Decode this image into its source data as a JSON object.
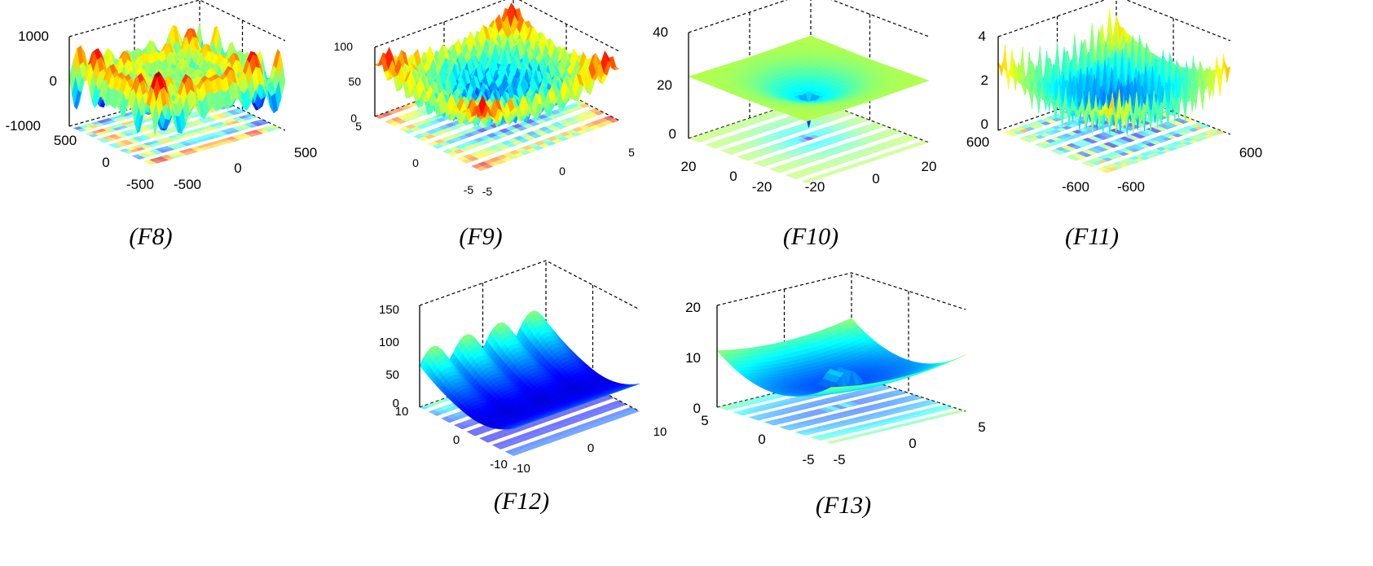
{
  "chart_data": [
    {
      "type": "surface",
      "caption": "(F8)",
      "colormap": "jet",
      "z_ticks": [
        "1000",
        "0",
        "-1000"
      ],
      "zlim": [
        -1000,
        1000
      ],
      "x_ticks": [
        "500",
        "0",
        "-500"
      ],
      "y_ticks": [
        "-500",
        "0",
        "500"
      ],
      "xlim": [
        -500,
        500
      ],
      "ylim": [
        -500,
        500
      ],
      "grid": true,
      "contour_on_base": true
    },
    {
      "type": "surface",
      "caption": "(F9)",
      "colormap": "jet",
      "z_ticks": [
        "100",
        "50",
        "0"
      ],
      "zlim": [
        0,
        100
      ],
      "x_ticks": [
        "5",
        "0",
        "-5"
      ],
      "y_ticks": [
        "-5",
        "0",
        "5"
      ],
      "xlim": [
        -5,
        5
      ],
      "ylim": [
        -5,
        5
      ],
      "grid": true,
      "contour_on_base": true
    },
    {
      "type": "surface",
      "caption": "(F10)",
      "colormap": "jet",
      "z_ticks": [
        "40",
        "20",
        "0"
      ],
      "zlim": [
        0,
        40
      ],
      "x_ticks": [
        "20",
        "0",
        "-20"
      ],
      "y_ticks": [
        "-20",
        "0",
        "20"
      ],
      "xlim": [
        -20,
        20
      ],
      "ylim": [
        -20,
        20
      ],
      "grid": true,
      "contour_on_base": true
    },
    {
      "type": "surface",
      "caption": "(F11)",
      "colormap": "jet",
      "z_ticks": [
        "4",
        "2",
        "0"
      ],
      "zlim": [
        0,
        4
      ],
      "x_ticks": [
        "600",
        "-600"
      ],
      "y_ticks": [
        "-600",
        "600"
      ],
      "xlim": [
        -600,
        600
      ],
      "ylim": [
        -600,
        600
      ],
      "grid": true,
      "contour_on_base": true
    },
    {
      "type": "surface",
      "caption": "(F12)",
      "colormap": "jet",
      "z_ticks": [
        "150",
        "100",
        "50",
        "0"
      ],
      "zlim": [
        0,
        150
      ],
      "x_ticks": [
        "10",
        "0",
        "-10"
      ],
      "y_ticks": [
        "-10",
        "0",
        "10"
      ],
      "xlim": [
        -10,
        10
      ],
      "ylim": [
        -10,
        10
      ],
      "grid": true,
      "contour_on_base": true
    },
    {
      "type": "surface",
      "caption": "(F13)",
      "colormap": "jet",
      "z_ticks": [
        "20",
        "10",
        "0"
      ],
      "zlim": [
        0,
        20
      ],
      "x_ticks": [
        "5",
        "0",
        "-5"
      ],
      "y_ticks": [
        "-5",
        "0",
        "5"
      ],
      "xlim": [
        -5,
        5
      ],
      "ylim": [
        -5,
        5
      ],
      "grid": true,
      "contour_on_base": true
    }
  ]
}
